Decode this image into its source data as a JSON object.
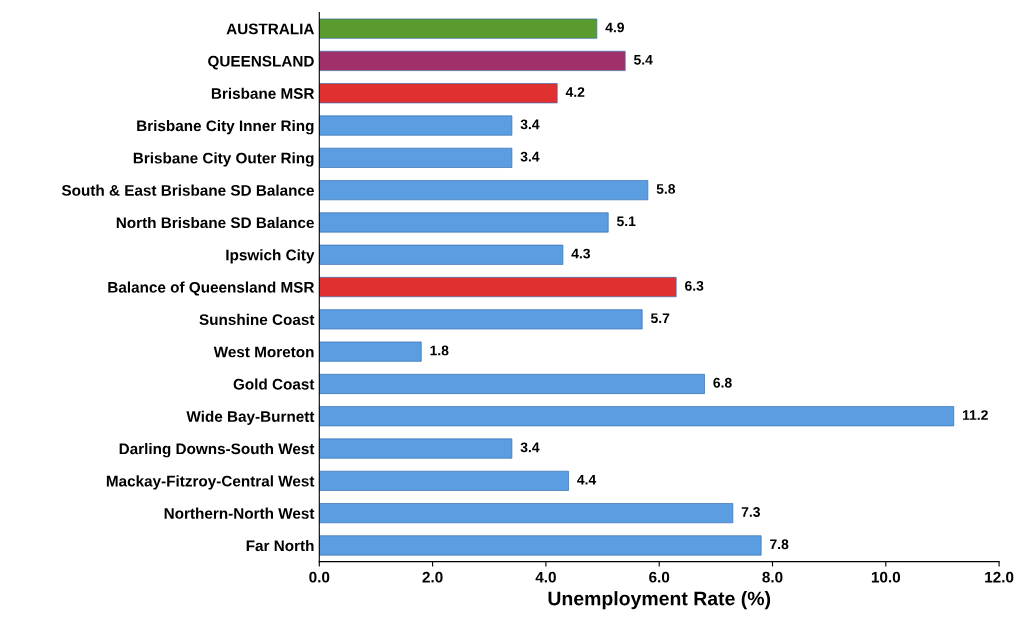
{
  "chart_data": {
    "type": "bar",
    "orientation": "horizontal",
    "xlabel": "Unemployment Rate (%)",
    "categories": [
      "AUSTRALIA",
      "QUEENSLAND",
      "Brisbane MSR",
      "Brisbane City Inner Ring",
      "Brisbane City Outer Ring",
      "South & East Brisbane SD Balance",
      "North Brisbane SD Balance",
      "Ipswich City",
      "Balance of Queensland MSR",
      "Sunshine Coast",
      "West Moreton",
      "Gold Coast",
      "Wide Bay-Burnett",
      "Darling Downs-South West",
      "Mackay-Fitzroy-Central West",
      "Northern-North West",
      "Far North"
    ],
    "values": [
      4.9,
      5.4,
      4.2,
      3.4,
      3.4,
      5.8,
      5.1,
      4.3,
      6.3,
      5.7,
      1.8,
      6.8,
      11.2,
      3.4,
      4.4,
      7.3,
      7.8
    ],
    "colors": [
      "#5a9a2e",
      "#a0306a",
      "#e03030",
      "#5a9de0",
      "#5a9de0",
      "#5a9de0",
      "#5a9de0",
      "#5a9de0",
      "#e03030",
      "#5a9de0",
      "#5a9de0",
      "#5a9de0",
      "#5a9de0",
      "#5a9de0",
      "#5a9de0",
      "#5a9de0",
      "#5a9de0"
    ],
    "xlim": [
      0,
      12
    ],
    "xticks": [
      {
        "value": 0,
        "label": "0.0"
      },
      {
        "value": 2,
        "label": "2.0"
      },
      {
        "value": 4,
        "label": "4.0"
      },
      {
        "value": 6,
        "label": "6.0"
      },
      {
        "value": 8,
        "label": "8.0"
      },
      {
        "value": 10,
        "label": "10.0"
      },
      {
        "value": 12,
        "label": "12.0"
      }
    ],
    "data_labels": true,
    "grid": false
  }
}
